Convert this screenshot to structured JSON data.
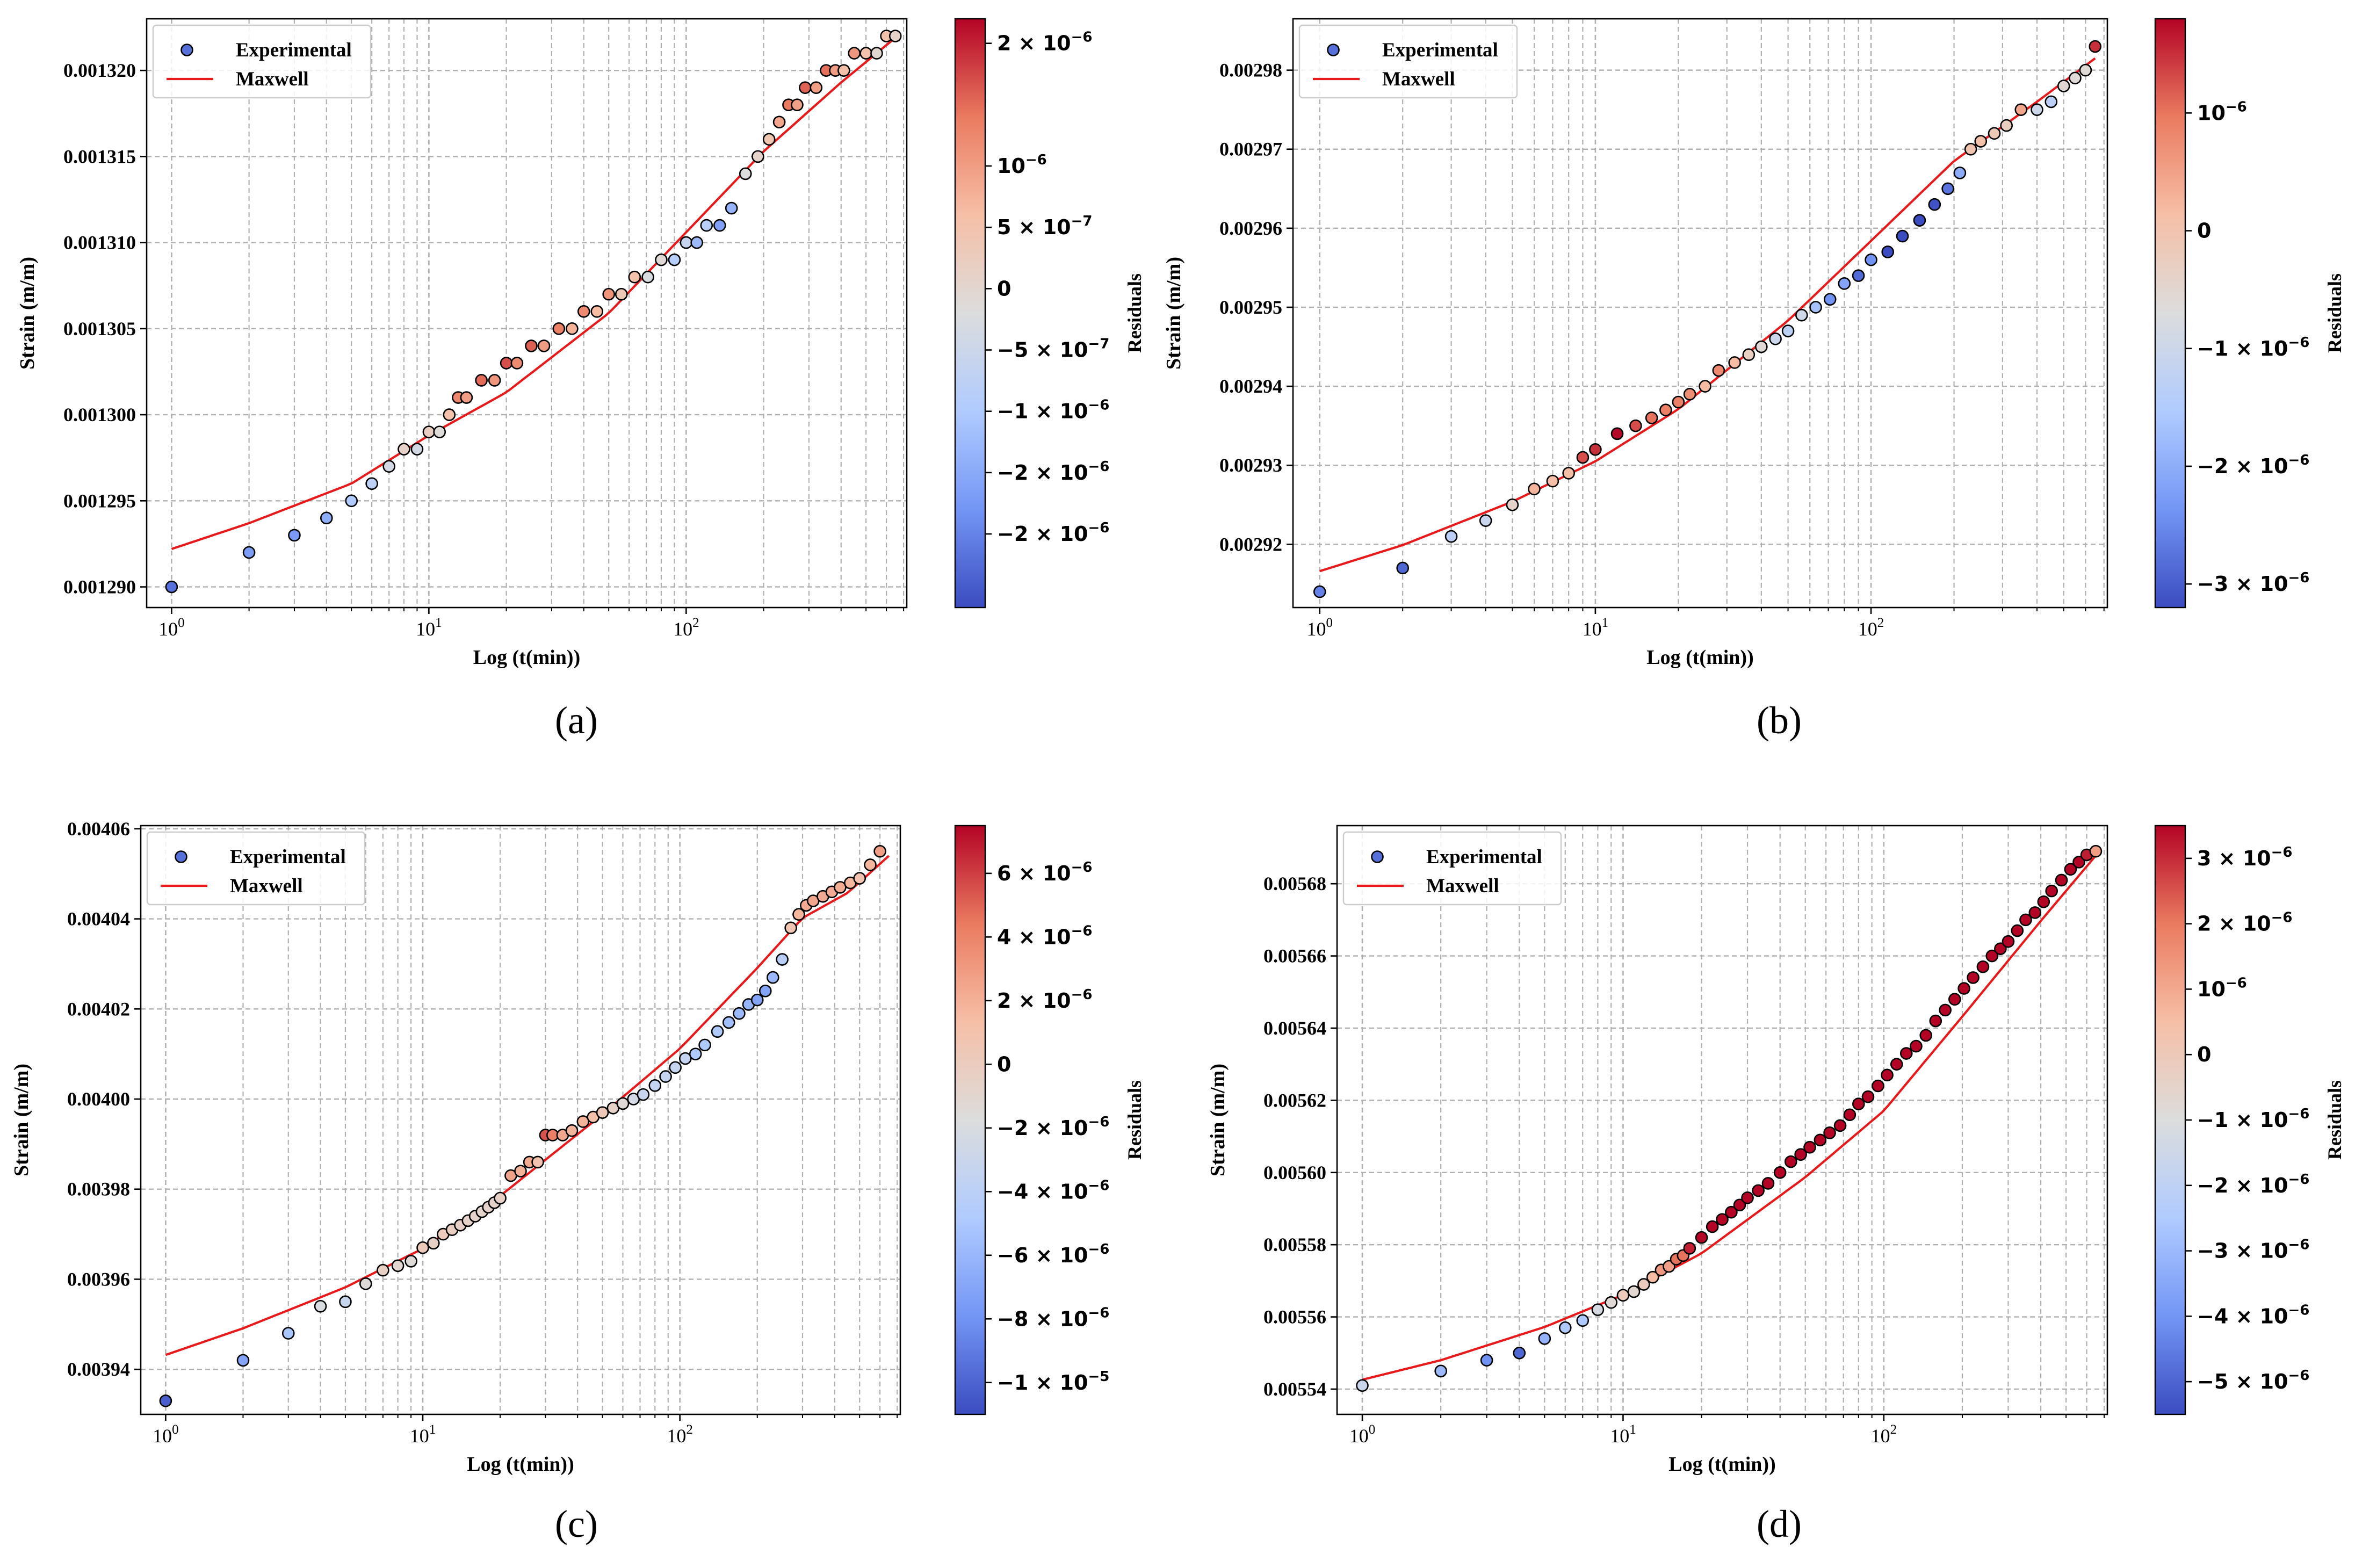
{
  "chart_data": [
    {
      "panel": "(a)",
      "type": "scatter",
      "xscale": "log",
      "xlabel": "Log (t(min))",
      "ylabel": "Strain (m/m)",
      "xlim": [
        0.8,
        720
      ],
      "ylim": [
        0.0012888,
        0.001323
      ],
      "xticks": [
        {
          "value": 1,
          "base": "10",
          "exp": "0"
        },
        {
          "value": 10,
          "base": "10",
          "exp": "1"
        },
        {
          "value": 100,
          "base": "10",
          "exp": "2"
        }
      ],
      "yticks": [
        {
          "value": 0.00129,
          "label": "0.001290"
        },
        {
          "value": 0.001295,
          "label": "0.001295"
        },
        {
          "value": 0.0013,
          "label": "0.001300"
        },
        {
          "value": 0.001305,
          "label": "0.001305"
        },
        {
          "value": 0.00131,
          "label": "0.001310"
        },
        {
          "value": 0.001315,
          "label": "0.001315"
        },
        {
          "value": 0.00132,
          "label": "0.001320"
        }
      ],
      "legend": {
        "entries": [
          "Experimental",
          "Maxwell"
        ],
        "position": "upper-left"
      },
      "experimental": {
        "t": [
          1,
          2,
          3,
          4,
          5,
          6,
          7,
          8,
          9,
          10,
          11,
          12,
          13,
          14,
          16,
          18,
          20,
          22,
          25,
          28,
          32,
          36,
          40,
          45,
          50,
          56,
          63,
          71,
          80,
          90,
          100,
          110,
          120,
          135,
          150,
          170,
          190,
          210,
          230,
          250,
          270,
          290,
          320,
          350,
          380,
          410,
          450,
          500,
          550,
          600,
          650
        ],
        "strain": [
          0.00129,
          0.001292,
          0.001293,
          0.001294,
          0.001295,
          0.001296,
          0.001297,
          0.001298,
          0.001298,
          0.001299,
          0.001299,
          0.0013,
          0.001301,
          0.001301,
          0.001302,
          0.001302,
          0.001303,
          0.001303,
          0.001304,
          0.001304,
          0.001305,
          0.001305,
          0.001306,
          0.001306,
          0.001307,
          0.001307,
          0.001308,
          0.001308,
          0.001309,
          0.001309,
          0.00131,
          0.00131,
          0.001311,
          0.001311,
          0.001312,
          0.001314,
          0.001315,
          0.001316,
          0.001317,
          0.001318,
          0.001318,
          0.001319,
          0.001319,
          0.00132,
          0.00132,
          0.00132,
          0.001321,
          0.001321,
          0.001321,
          0.001322,
          0.001322
        ]
      },
      "maxwell": {
        "t": [
          1,
          2,
          5,
          10,
          20,
          50,
          100,
          200,
          400,
          650
        ],
        "strain": [
          0.0012922,
          0.0012937,
          0.001296,
          0.0012988,
          0.0013013,
          0.0013059,
          0.0013106,
          0.0013153,
          0.0013193,
          0.0013219
        ]
      },
      "colorbar": {
        "label": "Residuals",
        "range": [
          -2.6e-06,
          2.2e-06
        ],
        "ticks": [
          {
            "value": 2e-06,
            "coef": "2 × 10",
            "exp": "−6"
          },
          {
            "value": 1e-06,
            "coef": "10",
            "exp": "−6"
          },
          {
            "value": 5e-07,
            "coef": "5 × 10",
            "exp": "−7"
          },
          {
            "value": 0,
            "coef": "0",
            "exp": ""
          },
          {
            "value": -5e-07,
            "coef": "−5 × 10",
            "exp": "−7"
          },
          {
            "value": -1e-06,
            "coef": "−1 × 10",
            "exp": "−6"
          },
          {
            "value": -1.5e-06,
            "coef": "−2 × 10",
            "exp": "−6"
          },
          {
            "value": -2e-06,
            "coef": "−2 × 10",
            "exp": "−6"
          }
        ]
      }
    },
    {
      "panel": "(b)",
      "type": "scatter",
      "xscale": "log",
      "xlabel": "Log (t(min))",
      "ylabel": "Strain (m/m)",
      "xlim": [
        0.8,
        720
      ],
      "ylim": [
        0.002912,
        0.0029865
      ],
      "xticks": [
        {
          "value": 1,
          "base": "10",
          "exp": "0"
        },
        {
          "value": 10,
          "base": "10",
          "exp": "1"
        },
        {
          "value": 100,
          "base": "10",
          "exp": "2"
        }
      ],
      "yticks": [
        {
          "value": 0.00292,
          "label": "0.00292"
        },
        {
          "value": 0.00293,
          "label": "0.00293"
        },
        {
          "value": 0.00294,
          "label": "0.00294"
        },
        {
          "value": 0.00295,
          "label": "0.00295"
        },
        {
          "value": 0.00296,
          "label": "0.00296"
        },
        {
          "value": 0.00297,
          "label": "0.00297"
        },
        {
          "value": 0.00298,
          "label": "0.00298"
        }
      ],
      "legend": {
        "entries": [
          "Experimental",
          "Maxwell"
        ],
        "position": "upper-left"
      },
      "experimental": {
        "t": [
          1,
          2,
          3,
          4,
          5,
          6,
          7,
          8,
          9,
          10,
          12,
          14,
          16,
          18,
          20,
          22,
          25,
          28,
          32,
          36,
          40,
          45,
          50,
          56,
          63,
          71,
          80,
          90,
          100,
          115,
          130,
          150,
          170,
          190,
          210,
          230,
          250,
          280,
          310,
          350,
          400,
          450,
          500,
          550,
          600,
          650
        ],
        "strain": [
          0.002914,
          0.002917,
          0.002921,
          0.002923,
          0.002925,
          0.002927,
          0.002928,
          0.002929,
          0.002931,
          0.002932,
          0.002934,
          0.002935,
          0.002936,
          0.002937,
          0.002938,
          0.002939,
          0.00294,
          0.002942,
          0.002943,
          0.002944,
          0.002945,
          0.002946,
          0.002947,
          0.002949,
          0.00295,
          0.002951,
          0.002953,
          0.002954,
          0.002956,
          0.002957,
          0.002959,
          0.002961,
          0.002963,
          0.002965,
          0.002967,
          0.00297,
          0.002971,
          0.002972,
          0.002973,
          0.002975,
          0.002975,
          0.002976,
          0.002978,
          0.002979,
          0.00298,
          0.002983
        ]
      },
      "maxwell": {
        "t": [
          1,
          2,
          5,
          10,
          20,
          50,
          100,
          200,
          400,
          650
        ],
        "strain": [
          0.0029166,
          0.0029199,
          0.0029254,
          0.0029305,
          0.0029371,
          0.0029483,
          0.0029584,
          0.0029685,
          0.002976,
          0.0029815
        ]
      },
      "colorbar": {
        "label": "Residuals",
        "range": [
          -3.2e-06,
          1.8e-06
        ],
        "ticks": [
          {
            "value": 1e-06,
            "coef": "10",
            "exp": "−6"
          },
          {
            "value": 0,
            "coef": "0",
            "exp": ""
          },
          {
            "value": -1e-06,
            "coef": "−1 × 10",
            "exp": "−6"
          },
          {
            "value": -2e-06,
            "coef": "−2 × 10",
            "exp": "−6"
          },
          {
            "value": -3e-06,
            "coef": "−3 × 10",
            "exp": "−6"
          }
        ]
      }
    },
    {
      "panel": "(c)",
      "type": "scatter",
      "xscale": "log",
      "xlabel": "Log (t(min))",
      "ylabel": "Strain (m/m)",
      "xlim": [
        0.8,
        720
      ],
      "ylim": [
        0.00393,
        0.0040607
      ],
      "xticks": [
        {
          "value": 1,
          "base": "10",
          "exp": "0"
        },
        {
          "value": 10,
          "base": "10",
          "exp": "1"
        },
        {
          "value": 100,
          "base": "10",
          "exp": "2"
        }
      ],
      "yticks": [
        {
          "value": 0.00394,
          "label": "0.00394"
        },
        {
          "value": 0.00396,
          "label": "0.00396"
        },
        {
          "value": 0.00398,
          "label": "0.00398"
        },
        {
          "value": 0.004,
          "label": "0.00400"
        },
        {
          "value": 0.00402,
          "label": "0.00402"
        },
        {
          "value": 0.00404,
          "label": "0.00404"
        },
        {
          "value": 0.00406,
          "label": "0.00406"
        }
      ],
      "legend": {
        "entries": [
          "Experimental",
          "Maxwell"
        ],
        "position": "upper-left"
      },
      "experimental": {
        "t": [
          1,
          2,
          3,
          4,
          5,
          6,
          7,
          8,
          9,
          10,
          11,
          12,
          13,
          14,
          15,
          16,
          17,
          18,
          19,
          20,
          22,
          24,
          26,
          28,
          30,
          32,
          35,
          38,
          42,
          46,
          50,
          55,
          60,
          66,
          72,
          80,
          88,
          96,
          105,
          115,
          125,
          140,
          155,
          170,
          185,
          200,
          215,
          230,
          250,
          270,
          290,
          310,
          330,
          360,
          390,
          420,
          460,
          500,
          550,
          600
        ],
        "strain": [
          0.003933,
          0.003942,
          0.003948,
          0.003954,
          0.003955,
          0.003959,
          0.003962,
          0.003963,
          0.003964,
          0.003967,
          0.003968,
          0.00397,
          0.003971,
          0.003972,
          0.003973,
          0.003974,
          0.003975,
          0.003976,
          0.003977,
          0.003978,
          0.003983,
          0.003984,
          0.003986,
          0.003986,
          0.003992,
          0.003992,
          0.003992,
          0.003993,
          0.003995,
          0.003996,
          0.003997,
          0.003998,
          0.003999,
          0.004,
          0.004001,
          0.004003,
          0.004005,
          0.004007,
          0.004009,
          0.00401,
          0.004012,
          0.004015,
          0.004017,
          0.004019,
          0.004021,
          0.004022,
          0.004024,
          0.004027,
          0.004031,
          0.004038,
          0.004041,
          0.004043,
          0.004044,
          0.004045,
          0.004046,
          0.004047,
          0.004048,
          0.004049,
          0.004052,
          0.004055
        ]
      },
      "maxwell": {
        "t": [
          1,
          2,
          5,
          10,
          20,
          50,
          100,
          200,
          300,
          450,
          650
        ],
        "strain": [
          0.0039432,
          0.0039491,
          0.0039582,
          0.0039668,
          0.0039785,
          0.0039966,
          0.0040112,
          0.0040291,
          0.0040402,
          0.0040458,
          0.004054
        ]
      },
      "colorbar": {
        "label": "Residuals",
        "range": [
          -1.1e-05,
          7.5e-06
        ],
        "ticks": [
          {
            "value": 6e-06,
            "coef": "6 × 10",
            "exp": "−6"
          },
          {
            "value": 4e-06,
            "coef": "4 × 10",
            "exp": "−6"
          },
          {
            "value": 2e-06,
            "coef": "2 × 10",
            "exp": "−6"
          },
          {
            "value": 0,
            "coef": "0",
            "exp": ""
          },
          {
            "value": -2e-06,
            "coef": "−2 × 10",
            "exp": "−6"
          },
          {
            "value": -4e-06,
            "coef": "−4 × 10",
            "exp": "−6"
          },
          {
            "value": -6e-06,
            "coef": "−6 × 10",
            "exp": "−6"
          },
          {
            "value": -8e-06,
            "coef": "−8 × 10",
            "exp": "−6"
          },
          {
            "value": -1e-05,
            "coef": "−1 × 10",
            "exp": "−5"
          }
        ]
      }
    },
    {
      "panel": "(d)",
      "type": "scatter",
      "xscale": "log",
      "xlabel": "Log (t(min))",
      "ylabel": "Strain (m/m)",
      "xlim": [
        0.8,
        720
      ],
      "ylim": [
        0.005533,
        0.0056961
      ],
      "xticks": [
        {
          "value": 1,
          "base": "10",
          "exp": "0"
        },
        {
          "value": 10,
          "base": "10",
          "exp": "1"
        },
        {
          "value": 100,
          "base": "10",
          "exp": "2"
        }
      ],
      "yticks": [
        {
          "value": 0.00554,
          "label": "0.00554"
        },
        {
          "value": 0.00556,
          "label": "0.00556"
        },
        {
          "value": 0.00558,
          "label": "0.00558"
        },
        {
          "value": 0.0056,
          "label": "0.00560"
        },
        {
          "value": 0.00562,
          "label": "0.00562"
        },
        {
          "value": 0.00564,
          "label": "0.00564"
        },
        {
          "value": 0.00566,
          "label": "0.00566"
        },
        {
          "value": 0.00568,
          "label": "0.00568"
        }
      ],
      "legend": {
        "entries": [
          "Experimental",
          "Maxwell"
        ],
        "position": "upper-left"
      },
      "experimental": {
        "t": [
          1,
          2,
          3,
          4,
          5,
          6,
          7,
          8,
          9,
          10,
          11,
          12,
          13,
          14,
          15,
          16,
          17,
          18,
          20,
          22,
          24,
          26,
          28,
          30,
          33,
          36,
          40,
          44,
          48,
          52,
          57,
          62,
          68,
          74,
          80,
          87,
          95,
          103,
          112,
          122,
          133,
          145,
          158,
          172,
          187,
          203,
          220,
          240,
          260,
          280,
          300,
          325,
          350,
          380,
          410,
          440,
          480,
          520,
          560,
          600,
          650
        ],
        "strain": [
          0.005541,
          0.005545,
          0.005548,
          0.00555,
          0.005554,
          0.005557,
          0.005559,
          0.005562,
          0.005564,
          0.005566,
          0.005567,
          0.005569,
          0.005571,
          0.005573,
          0.005574,
          0.005576,
          0.005577,
          0.005579,
          0.005582,
          0.005585,
          0.005587,
          0.005589,
          0.005591,
          0.005593,
          0.005595,
          0.005597,
          0.0056,
          0.005603,
          0.005605,
          0.005607,
          0.005609,
          0.005611,
          0.005613,
          0.005616,
          0.005619,
          0.005621,
          0.005624,
          0.005627,
          0.00563,
          0.005633,
          0.005635,
          0.005638,
          0.005642,
          0.005645,
          0.005648,
          0.005651,
          0.005654,
          0.005657,
          0.00566,
          0.005662,
          0.005664,
          0.005667,
          0.00567,
          0.005672,
          0.005675,
          0.005678,
          0.005681,
          0.005684,
          0.005686,
          0.005688,
          0.005689
        ]
      },
      "maxwell": {
        "t": [
          1,
          2,
          5,
          10,
          20,
          50,
          100,
          200,
          400,
          650
        ],
        "strain": [
          0.0055426,
          0.005548,
          0.0055572,
          0.0055661,
          0.0055776,
          0.0055987,
          0.0056171,
          0.0056432,
          0.0056697,
          0.0056878
        ]
      },
      "colorbar": {
        "label": "Residuals",
        "range": [
          -5.5e-06,
          3.5e-06
        ],
        "ticks": [
          {
            "value": 3e-06,
            "coef": "3 × 10",
            "exp": "−6"
          },
          {
            "value": 2e-06,
            "coef": "2 × 10",
            "exp": "−6"
          },
          {
            "value": 1e-06,
            "coef": "10",
            "exp": "−6"
          },
          {
            "value": 0,
            "coef": "0",
            "exp": ""
          },
          {
            "value": -1e-06,
            "coef": "−1 × 10",
            "exp": "−6"
          },
          {
            "value": -2e-06,
            "coef": "−2 × 10",
            "exp": "−6"
          },
          {
            "value": -3e-06,
            "coef": "−3 × 10",
            "exp": "−6"
          },
          {
            "value": -4e-06,
            "coef": "−4 × 10",
            "exp": "−6"
          },
          {
            "value": -5e-06,
            "coef": "−5 × 10",
            "exp": "−6"
          }
        ]
      }
    }
  ],
  "colors": {
    "maxwell_line": "#e8191a",
    "grid": "#b0b0b0",
    "marker_edge": "#000000",
    "colormap": [
      "#3b4cc0",
      "#7396f5",
      "#b0cbff",
      "#dcdddd",
      "#f6bfa6",
      "#ea7b60",
      "#b40426"
    ]
  }
}
